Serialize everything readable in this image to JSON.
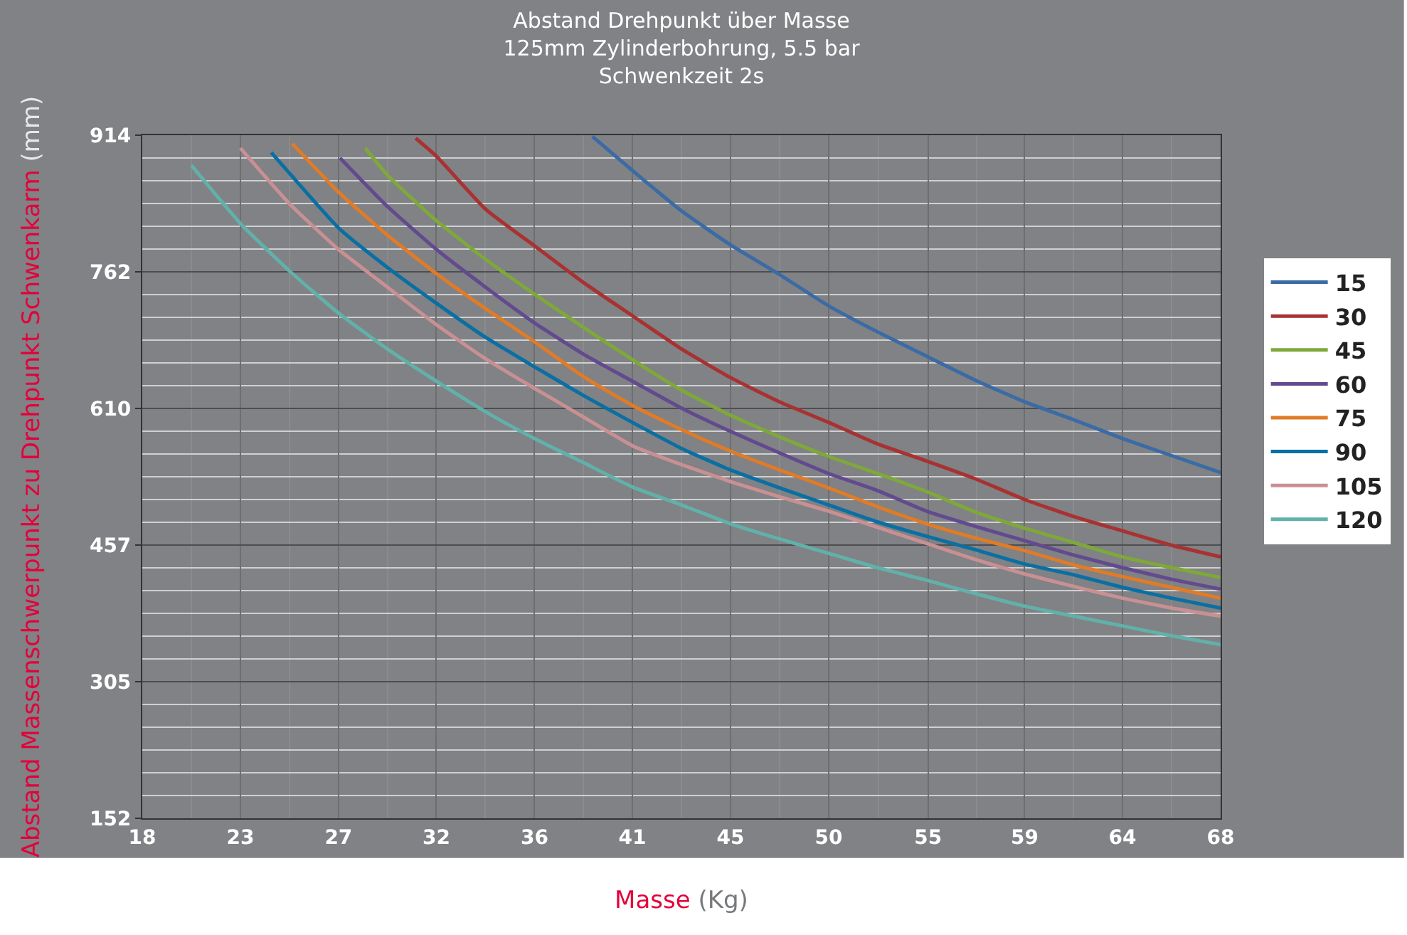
{
  "chart_data": {
    "type": "line",
    "title": "Abstand Drehpunkt über Masse\n125mm Zylinderbohrung, 5.5 bar\nSchwenkzeit 2s",
    "xlabel": "Masse (Kg)",
    "ylabel": "Abstand Massenschwerpunkt zu Drehpunkt Schwenkarm (mm)",
    "xlim": [
      18.14,
      68.04
    ],
    "xticks": [
      {
        "value": 18.14,
        "label": "18"
      },
      {
        "value": 22.68,
        "label": "23"
      },
      {
        "value": 27.22,
        "label": "27"
      },
      {
        "value": 31.75,
        "label": "32"
      },
      {
        "value": 36.29,
        "label": "36"
      },
      {
        "value": 40.82,
        "label": "41"
      },
      {
        "value": 45.36,
        "label": "45"
      },
      {
        "value": 49.9,
        "label": "50"
      },
      {
        "value": 54.5,
        "label": "55"
      },
      {
        "value": 58.97,
        "label": "59"
      },
      {
        "value": 63.5,
        "label": "64"
      },
      {
        "value": 68.04,
        "label": "68"
      }
    ],
    "ylim": [
      152.4,
      914.4
    ],
    "yticks": [
      {
        "value": 152.4,
        "label": "152"
      },
      {
        "value": 304.8,
        "label": "305"
      },
      {
        "value": 457.2,
        "label": "457"
      },
      {
        "value": 609.6,
        "label": "610"
      },
      762,
      {
        "value": 914.4,
        "label": "914"
      }
    ],
    "grid": true,
    "legend": "right",
    "marker": "none",
    "line_style": "solid",
    "series": [
      {
        "name": "15",
        "color": "#3b6ba5",
        "x": [
          38.97,
          40.82,
          43.09,
          45.36,
          47.63,
          49.9,
          52.16,
          54.43,
          56.7,
          58.97,
          61.24,
          63.5,
          65.77,
          68.04
        ],
        "values": [
          913,
          875,
          830,
          792,
          759,
          724,
          695,
          668,
          641,
          617,
          597,
          576,
          557,
          538
        ]
      },
      {
        "name": "30",
        "color": "#a83232",
        "x": [
          30.79,
          31.75,
          34.02,
          36.29,
          38.56,
          40.82,
          43.09,
          45.36,
          47.63,
          49.9,
          52.16,
          54.43,
          56.7,
          58.97,
          61.24,
          63.5,
          65.77,
          68.04
        ],
        "values": [
          911,
          891,
          832,
          791,
          750,
          713,
          676,
          644,
          617,
          594,
          570,
          551,
          531,
          508,
          489,
          473,
          457,
          444
        ]
      },
      {
        "name": "45",
        "color": "#7ea83a",
        "x": [
          28.46,
          29.48,
          31.75,
          34.02,
          36.29,
          38.56,
          40.82,
          43.09,
          45.36,
          47.63,
          49.9,
          52.16,
          54.43,
          56.7,
          58.97,
          61.24,
          63.5,
          65.77,
          68.04
        ],
        "values": [
          900,
          870,
          819,
          776,
          737,
          700,
          664,
          630,
          602,
          578,
          556,
          537,
          517,
          494,
          476,
          460,
          444,
          432,
          421
        ]
      },
      {
        "name": "60",
        "color": "#634a8f",
        "x": [
          27.29,
          29.48,
          31.75,
          34.02,
          36.29,
          38.56,
          40.82,
          43.09,
          45.36,
          47.63,
          49.9,
          52.16,
          54.43,
          56.7,
          58.97,
          61.24,
          63.5,
          65.77,
          68.04
        ],
        "values": [
          889,
          835,
          787,
          745,
          705,
          670,
          640,
          610,
          584,
          560,
          537,
          518,
          495,
          478,
          462,
          446,
          432,
          419,
          408
        ]
      },
      {
        "name": "75",
        "color": "#e07b27",
        "x": [
          25.08,
          27.22,
          29.48,
          31.75,
          34.02,
          36.29,
          38.56,
          40.82,
          43.09,
          45.36,
          47.63,
          49.9,
          52.16,
          54.43,
          56.7,
          58.97,
          61.24,
          63.5,
          65.77,
          68.04
        ],
        "values": [
          905,
          851,
          803,
          760,
          721,
          684,
          645,
          613,
          586,
          562,
          541,
          521,
          500,
          481,
          465,
          451,
          435,
          422,
          410,
          398
        ]
      },
      {
        "name": "90",
        "color": "#0a6fa3",
        "x": [
          24.11,
          24.95,
          27.22,
          29.48,
          31.75,
          34.02,
          36.29,
          38.56,
          40.82,
          43.09,
          45.36,
          47.63,
          49.9,
          52.16,
          54.43,
          56.7,
          58.97,
          61.24,
          63.5,
          65.77,
          68.04
        ],
        "values": [
          895,
          872,
          811,
          767,
          727,
          689,
          656,
          624,
          594,
          565,
          541,
          521,
          502,
          483,
          467,
          452,
          436,
          424,
          410,
          398,
          387
        ]
      },
      {
        "name": "105",
        "color": "#c99094",
        "x": [
          22.68,
          24.95,
          27.22,
          29.48,
          31.75,
          34.02,
          36.29,
          38.56,
          40.82,
          43.09,
          45.36,
          47.63,
          49.9,
          52.16,
          54.43,
          56.7,
          58.97,
          61.24,
          63.5,
          65.77,
          68.04
        ],
        "values": [
          900,
          838,
          787,
          745,
          703,
          665,
          632,
          600,
          568,
          547,
          528,
          511,
          495,
          477,
          459,
          441,
          425,
          411,
          398,
          387,
          378
        ]
      },
      {
        "name": "120",
        "color": "#62b0aa",
        "x": [
          20.41,
          22.68,
          24.95,
          27.22,
          29.48,
          31.75,
          34.02,
          36.29,
          38.56,
          40.82,
          43.09,
          45.36,
          47.63,
          49.9,
          52.16,
          54.43,
          56.7,
          58.97,
          61.24,
          63.5,
          65.77,
          68.04
        ],
        "values": [
          881,
          816,
          763,
          716,
          676,
          640,
          606,
          576,
          549,
          522,
          502,
          481,
          464,
          448,
          432,
          418,
          403,
          389,
          378,
          367,
          356,
          346
        ]
      }
    ]
  }
}
